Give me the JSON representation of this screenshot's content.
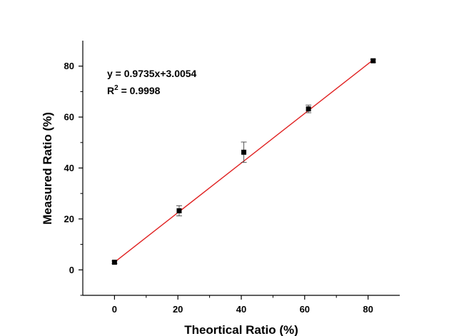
{
  "chart_data": {
    "type": "scatter",
    "title": "",
    "xlabel": "Theortical Ratio (%)",
    "ylabel": "Measured Ratio (%)",
    "xlim": [
      -10,
      90
    ],
    "ylim": [
      -10,
      90
    ],
    "xticks": [
      0,
      20,
      40,
      60,
      80
    ],
    "yticks": [
      0,
      20,
      40,
      60,
      80
    ],
    "x_tick_labels": [
      "0",
      "20",
      "40",
      "60",
      "80"
    ],
    "y_tick_labels": [
      "0",
      "20",
      "40",
      "60",
      "80"
    ],
    "grid": false,
    "legend": null,
    "series": [
      {
        "x": [
          0,
          20.4,
          40.8,
          61.2,
          81.6
        ],
        "y": [
          3.0,
          23.2,
          46.2,
          63.2,
          82.1
        ],
        "y_error": [
          0.5,
          2.0,
          4.0,
          1.5,
          0.6
        ],
        "marker": "square",
        "color": "#000000"
      }
    ],
    "fit_line": {
      "slope": 0.9735,
      "intercept": 3.0054,
      "x_range": [
        0,
        81.6
      ],
      "color": "#e02020"
    },
    "annotations": {
      "equation": "y = 0.9735x+3.0054",
      "r2_prefix": "R",
      "r2_superscript": "2",
      "r2_suffix": " = 0.9998"
    }
  }
}
